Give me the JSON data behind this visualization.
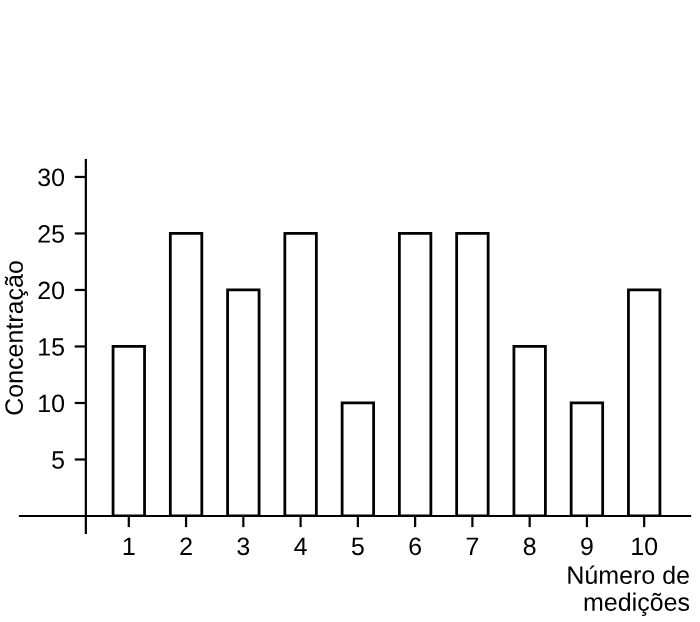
{
  "chart_data": {
    "type": "bar",
    "xlabel": "Número de\nmedições",
    "ylabel": "Concentração",
    "categories": [
      "1",
      "2",
      "3",
      "4",
      "5",
      "6",
      "7",
      "8",
      "9",
      "10"
    ],
    "values": [
      15,
      25,
      20,
      25,
      10,
      25,
      25,
      15,
      10,
      20
    ],
    "color": "#ffffff",
    "ylim": [
      0,
      31.5
    ],
    "yticks": [
      5,
      10,
      15,
      20,
      25,
      30
    ],
    "grid": false
  }
}
